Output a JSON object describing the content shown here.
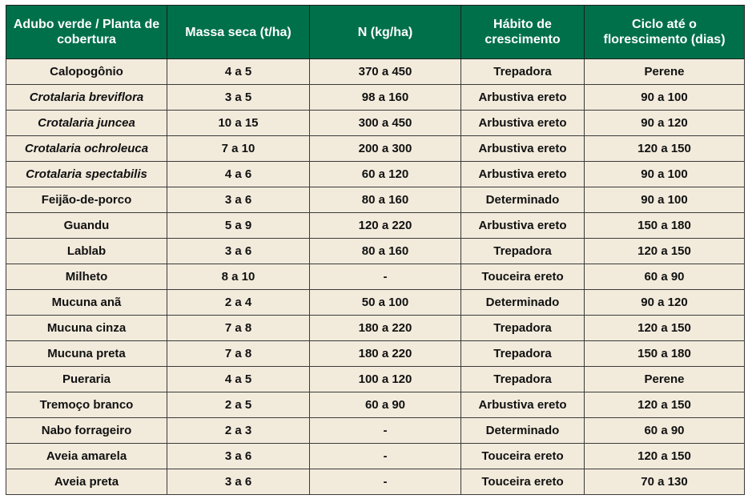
{
  "table": {
    "headers": [
      "Adubo verde / Planta de cobertura",
      "Massa seca (t/ha)",
      "N (kg/ha)",
      "Hábito de crescimento",
      "Ciclo até o florescimento (dias)"
    ],
    "rows": [
      {
        "planta": "Calopogônio",
        "italic": false,
        "massa": "4 a 5",
        "n": "370 a 450",
        "habito": "Trepadora",
        "ciclo": "Perene"
      },
      {
        "planta": "Crotalaria breviflora",
        "italic": true,
        "massa": "3 a 5",
        "n": "98 a 160",
        "habito": "Arbustiva ereto",
        "ciclo": "90 a 100"
      },
      {
        "planta": "Crotalaria juncea",
        "italic": true,
        "massa": "10 a 15",
        "n": "300 a 450",
        "habito": "Arbustiva ereto",
        "ciclo": "90 a 120"
      },
      {
        "planta": "Crotalaria ochroleuca",
        "italic": true,
        "massa": "7 a 10",
        "n": "200 a 300",
        "habito": "Arbustiva ereto",
        "ciclo": "120 a 150"
      },
      {
        "planta": "Crotalaria spectabilis",
        "italic": true,
        "massa": "4 a 6",
        "n": "60 a 120",
        "habito": "Arbustiva ereto",
        "ciclo": "90 a 100"
      },
      {
        "planta": "Feijão-de-porco",
        "italic": false,
        "massa": "3 a 6",
        "n": "80 a 160",
        "habito": "Determinado",
        "ciclo": "90 a 100"
      },
      {
        "planta": "Guandu",
        "italic": false,
        "massa": "5 a 9",
        "n": "120 a 220",
        "habito": "Arbustiva ereto",
        "ciclo": "150 a 180"
      },
      {
        "planta": "Lablab",
        "italic": false,
        "massa": "3 a 6",
        "n": "80 a 160",
        "habito": "Trepadora",
        "ciclo": "120 a 150"
      },
      {
        "planta": "Milheto",
        "italic": false,
        "massa": "8 a 10",
        "n": "-",
        "habito": "Touceira ereto",
        "ciclo": "60 a 90"
      },
      {
        "planta": "Mucuna anã",
        "italic": false,
        "massa": "2 a 4",
        "n": "50 a 100",
        "habito": "Determinado",
        "ciclo": "90 a 120"
      },
      {
        "planta": "Mucuna cinza",
        "italic": false,
        "massa": "7 a 8",
        "n": "180 a 220",
        "habito": "Trepadora",
        "ciclo": "120 a 150"
      },
      {
        "planta": "Mucuna preta",
        "italic": false,
        "massa": "7 a 8",
        "n": "180 a 220",
        "habito": "Trepadora",
        "ciclo": "150 a 180"
      },
      {
        "planta": "Pueraria",
        "italic": false,
        "massa": "4 a 5",
        "n": "100 a 120",
        "habito": "Trepadora",
        "ciclo": "Perene"
      },
      {
        "planta": "Tremoço branco",
        "italic": false,
        "massa": "2 a 5",
        "n": "60 a 90",
        "habito": "Arbustiva ereto",
        "ciclo": "120 a 150"
      },
      {
        "planta": "Nabo forrageiro",
        "italic": false,
        "massa": "2 a 3",
        "n": "-",
        "habito": "Determinado",
        "ciclo": "60 a 90"
      },
      {
        "planta": "Aveia amarela",
        "italic": false,
        "massa": "3 a 6",
        "n": "-",
        "habito": "Touceira ereto",
        "ciclo": "120 a 150"
      },
      {
        "planta": "Aveia preta",
        "italic": false,
        "massa": "3 a 6",
        "n": "-",
        "habito": "Touceira ereto",
        "ciclo": "70 a 130"
      }
    ]
  },
  "colors": {
    "header_bg": "#00704a",
    "header_text": "#ffffff",
    "cell_bg": "#f2ebdc",
    "border": "#3a3a3a"
  }
}
